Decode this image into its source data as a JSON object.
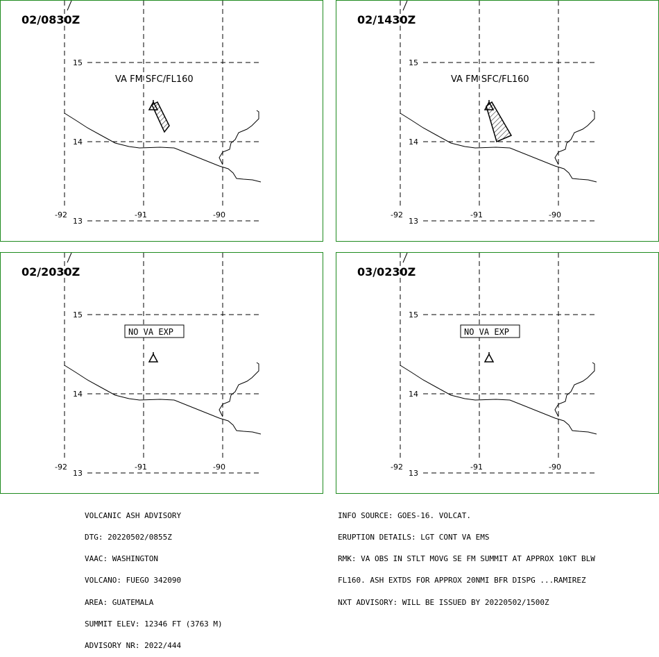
{
  "panels": [
    {
      "time": "02/0830Z",
      "label": "VA FM SFC/FL160",
      "label_type": "forecast",
      "ash": "small"
    },
    {
      "time": "02/1430Z",
      "label": "VA FM SFC/FL160",
      "label_type": "forecast",
      "ash": "large"
    },
    {
      "time": "02/2030Z",
      "label": "NO VA EXP",
      "label_type": "boxed",
      "ash": "none"
    },
    {
      "time": "03/0230Z",
      "label": "NO VA EXP",
      "label_type": "boxed",
      "ash": "none"
    }
  ],
  "grid": {
    "lat_labels": [
      "15",
      "14",
      "13"
    ],
    "lon_labels": [
      "-92",
      "-91",
      "-90"
    ]
  },
  "advisory_left": [
    "VOLCANIC ASH ADVISORY",
    "DTG: 20220502/0855Z",
    "VAAC: WASHINGTON",
    "VOLCANO: FUEGO 342090",
    "AREA: GUATEMALA",
    "SUMMIT ELEV: 12346 FT (3763 M)",
    "ADVISORY NR: 2022/444"
  ],
  "advisory_right": [
    "INFO SOURCE: GOES-16. VOLCAT.",
    "ERUPTION DETAILS: LGT CONT VA EMS",
    "RMK: VA OBS IN STLT MOVG SE FM SUMMIT AT APPROX 10KT BLW",
    "FL160. ASH EXTDS FOR APPROX 20NMI BFR DISPG ...RAMIREZ",
    "NXT ADVISORY: WILL BE ISSUED BY 20220502/1500Z"
  ],
  "colors": {
    "panel_border": "#1e8a1e",
    "lines": "#000000"
  },
  "icons": {
    "volcano": "volcano-triangle-icon"
  }
}
